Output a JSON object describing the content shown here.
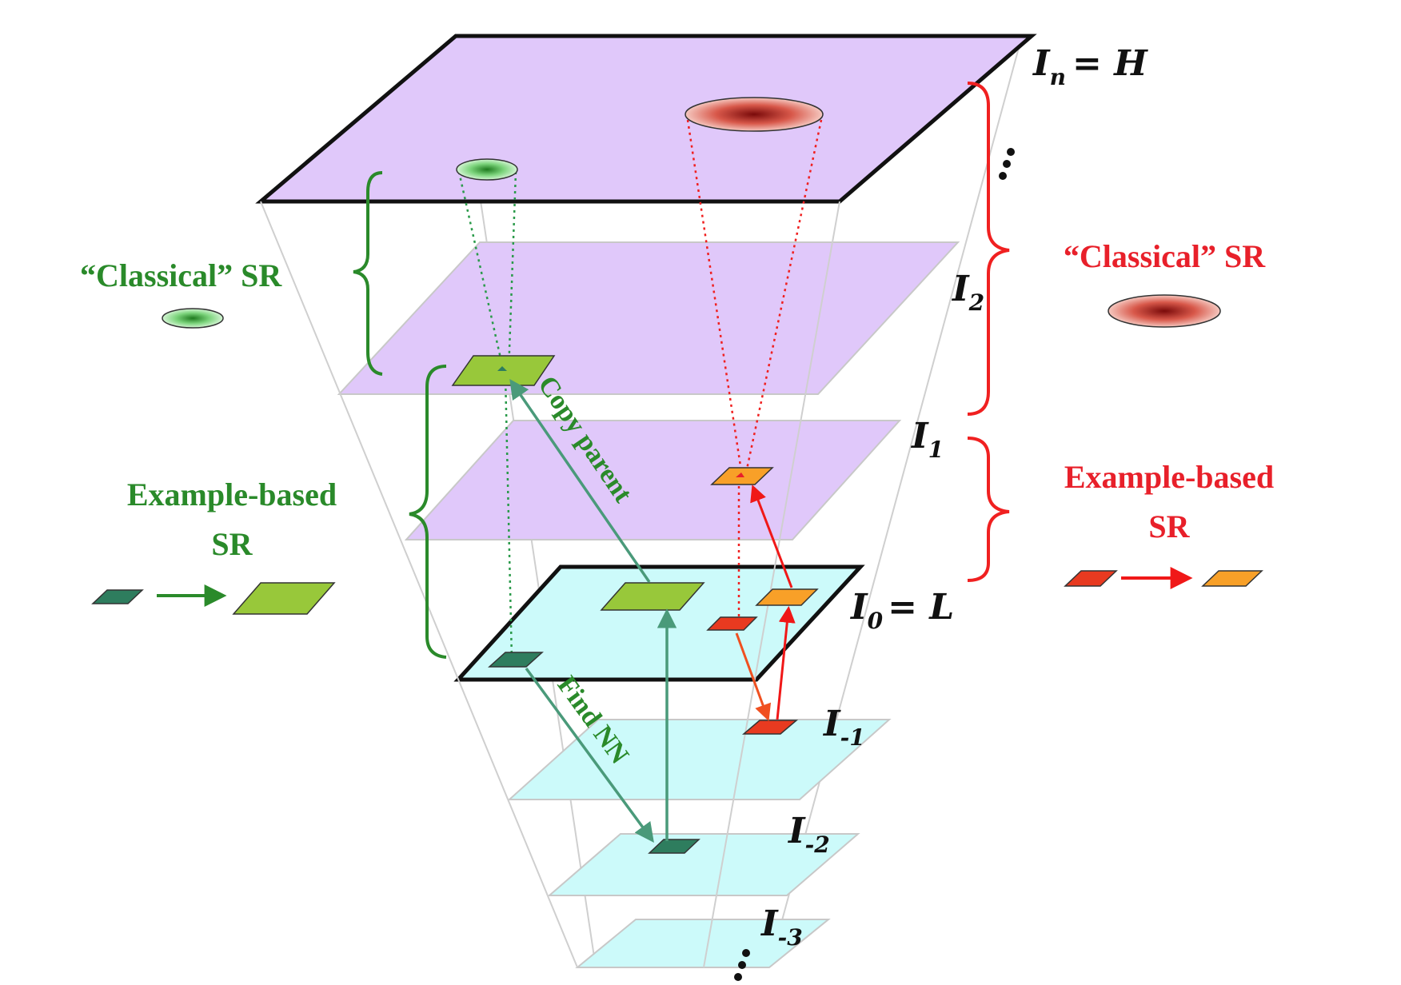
{
  "colors": {
    "plane_purple": "#e0c8fa",
    "plane_cyan": "#ccfafa",
    "frame_lines": "#c8c8c8",
    "green_text": "#2a8a2a",
    "teal_arrow": "#4a9a7a",
    "red_text": "#e8202a",
    "patch_dark_green": "#2e7d5e",
    "patch_light_green": "#98c83a",
    "patch_red": "#e83a20",
    "patch_orange": "#f8a028"
  },
  "levels": {
    "In": "I",
    "In_sub": "n",
    "In_eq": "= H",
    "I2": "I",
    "I2_sub": "2",
    "I1": "I",
    "I1_sub": "1",
    "I0": "I",
    "I0_sub": "0",
    "I0_eq": "= L",
    "Im1": "I",
    "Im1_sub": "-1",
    "Im2": "I",
    "Im2_sub": "-2",
    "Im3": "I",
    "Im3_sub": "-3"
  },
  "left": {
    "classical": "“Classical” SR",
    "example_line1": "Example-based",
    "example_line2": "SR"
  },
  "right": {
    "classical": "“Classical” SR",
    "example_line1": "Example-based",
    "example_line2": "SR"
  },
  "arrows": {
    "copy_parent": "Copy parent",
    "find_nn": "Find NN"
  },
  "icons": {
    "green_blur": "green-blur-ellipse-icon",
    "red_blur": "red-blur-ellipse-icon",
    "ellipsis": "vertical-ellipsis-icon"
  }
}
